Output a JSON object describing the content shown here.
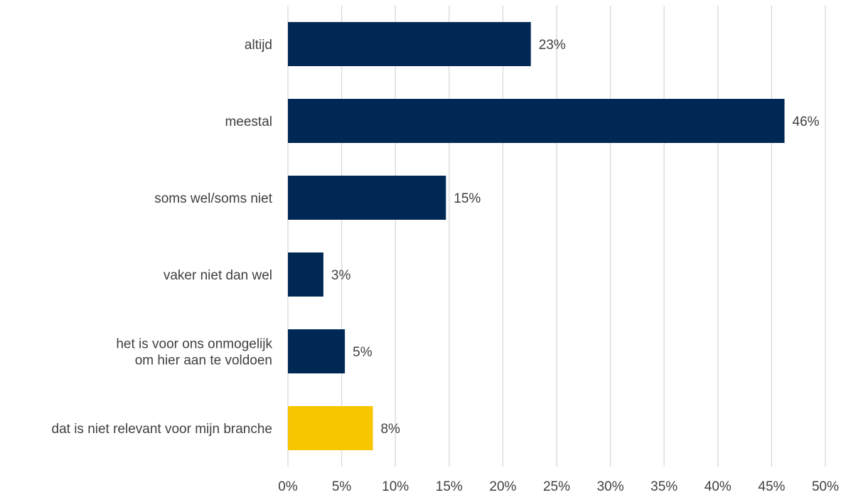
{
  "chart_data": {
    "type": "bar",
    "orientation": "horizontal",
    "title": "",
    "xlabel": "",
    "ylabel": "",
    "xlim": [
      0,
      50
    ],
    "x_ticks": [
      "0%",
      "5%",
      "10%",
      "15%",
      "20%",
      "25%",
      "30%",
      "35%",
      "40%",
      "45%",
      "50%"
    ],
    "x_tick_values": [
      0,
      5,
      10,
      15,
      20,
      25,
      30,
      35,
      40,
      45,
      50
    ],
    "grid": "vertical",
    "legend": "none",
    "categories": [
      [
        "altijd"
      ],
      [
        "meestal"
      ],
      [
        "soms wel/soms niet"
      ],
      [
        "vaker niet dan wel"
      ],
      [
        "het is voor ons onmogelijk",
        "om hier aan te voldoen"
      ],
      [
        "dat is niet relevant voor mijn branche"
      ]
    ],
    "values": [
      22.6,
      46.2,
      14.7,
      3.3,
      5.3,
      7.9
    ],
    "data_labels": [
      "23%",
      "46%",
      "15%",
      "3%",
      "5%",
      "8%"
    ],
    "bar_colors": [
      "#002855",
      "#002855",
      "#002855",
      "#002855",
      "#002855",
      "#f7c600"
    ],
    "colors": {
      "primary": "#002855",
      "highlight": "#f7c600",
      "grid": "#d9d9d9",
      "text": "#404040"
    }
  }
}
